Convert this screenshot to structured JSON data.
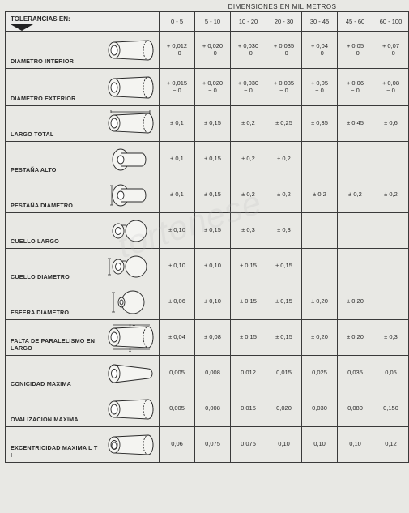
{
  "header": {
    "title": "DIMENSIONES EN MILIMETROS",
    "cornerLabel": "TOLERANCIAS EN:"
  },
  "columns": [
    "0 - 5",
    "5 - 10",
    "10 - 20",
    "20 - 30",
    "30 - 45",
    "45 - 60",
    "60 - 100"
  ],
  "rows": [
    {
      "label": "DIAMETRO INTERIOR",
      "icon": "tube-id",
      "vals": [
        "+ 0,012\n− 0",
        "+ 0,020\n− 0",
        "+ 0,030\n− 0",
        "+ 0,035\n− 0",
        "+ 0,04\n− 0",
        "+ 0,05\n− 0",
        "+ 0,07\n− 0"
      ]
    },
    {
      "label": "DIAMETRO EXTERIOR",
      "icon": "tube-od",
      "vals": [
        "+ 0,015\n− 0",
        "+ 0,020\n− 0",
        "+ 0,030\n− 0",
        "+ 0,035\n− 0",
        "+ 0,05\n− 0",
        "+ 0,06\n− 0",
        "+ 0,08\n− 0"
      ]
    },
    {
      "label": "LARGO TOTAL",
      "icon": "tube-len",
      "vals": [
        "± 0,1",
        "± 0,15",
        "± 0,2",
        "± 0,25",
        "± 0,35",
        "± 0,45",
        "± 0,6"
      ]
    },
    {
      "label": "PESTAÑA ALTO",
      "icon": "flange-h",
      "vals": [
        "± 0,1",
        "± 0,15",
        "± 0,2",
        "± 0,2",
        "",
        "",
        ""
      ]
    },
    {
      "label": "PESTAÑA DIAMETRO",
      "icon": "flange-d",
      "vals": [
        "± 0,1",
        "± 0,15",
        "± 0,2",
        "± 0,2",
        "± 0,2",
        "± 0,2",
        "± 0,2"
      ]
    },
    {
      "label": "CUELLO LARGO",
      "icon": "neck-len",
      "vals": [
        "± 0,10",
        "± 0,15",
        "± 0,3",
        "± 0,3",
        "",
        "",
        ""
      ]
    },
    {
      "label": "CUELLO DIAMETRO",
      "icon": "neck-d",
      "vals": [
        "± 0,10",
        "± 0,10",
        "± 0,15",
        "± 0,15",
        "",
        "",
        ""
      ]
    },
    {
      "label": "ESFERA DIAMETRO",
      "icon": "sphere-d",
      "vals": [
        "± 0,06",
        "± 0,10",
        "± 0,15",
        "± 0,15",
        "± 0,20",
        "± 0,20",
        ""
      ]
    },
    {
      "label": "FALTA DE PARALELISMO EN LARGO",
      "icon": "parallel",
      "vals": [
        "± 0,04",
        "± 0,08",
        "± 0,15",
        "± 0,15",
        "± 0,20",
        "± 0,20",
        "± 0,3"
      ]
    },
    {
      "label": "CONICIDAD MAXIMA",
      "icon": "cone",
      "vals": [
        "0,005",
        "0,008",
        "0,012",
        "0,015",
        "0,025",
        "0,035",
        "0,05"
      ]
    },
    {
      "label": "OVALIZACION MAXIMA",
      "icon": "oval",
      "vals": [
        "0,005",
        "0,008",
        "0,015",
        "0,020",
        "0,030",
        "0,080",
        "0,150"
      ]
    },
    {
      "label": "EXCENTRICIDAD MAXIMA L T I",
      "icon": "ecc",
      "vals": [
        "0,06",
        "0,075",
        "0,075",
        "0,10",
        "0,10",
        "0,10",
        "0,12"
      ]
    }
  ],
  "styles": {
    "stroke": "#2a2a2a",
    "fill": "#f4f4f1",
    "dash": "2,1.5",
    "lineWidth": 0.9
  }
}
